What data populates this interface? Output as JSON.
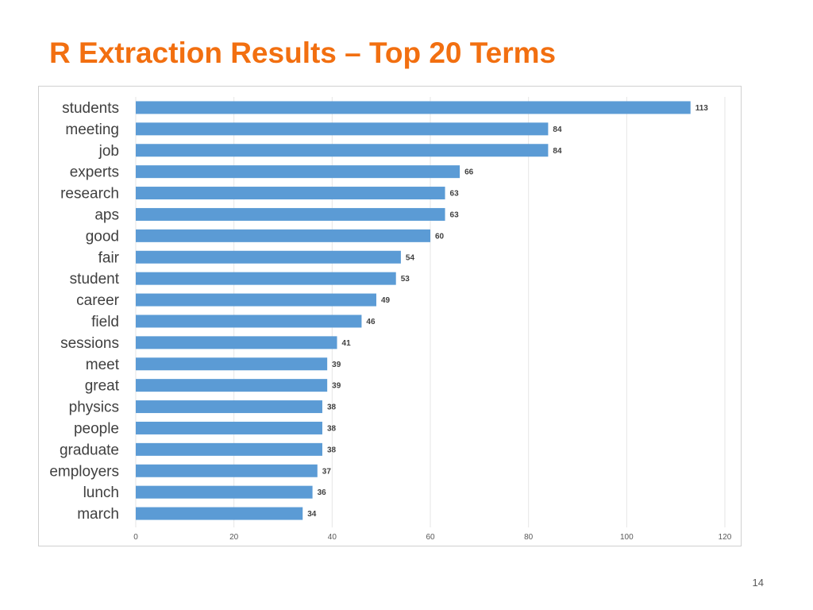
{
  "slide": {
    "title": "R Extraction Results – Top 20 Terms",
    "page_number": "14"
  },
  "colors": {
    "title": "#f26f10",
    "bar": "#5b9bd5",
    "grid": "#e6e6e6"
  },
  "chart_data": {
    "type": "bar",
    "orientation": "horizontal",
    "title": "",
    "xlabel": "",
    "ylabel": "",
    "categories": [
      "students",
      "meeting",
      "job",
      "experts",
      "research",
      "aps",
      "good",
      "fair",
      "student",
      "career",
      "field",
      "sessions",
      "meet",
      "great",
      "physics",
      "people",
      "graduate",
      "employers",
      "lunch",
      "march"
    ],
    "values": [
      113,
      84,
      84,
      66,
      63,
      63,
      60,
      54,
      53,
      49,
      46,
      41,
      39,
      39,
      38,
      38,
      38,
      37,
      36,
      34
    ],
    "value_labels": [
      "113",
      "84",
      "84",
      "66",
      "63",
      "63",
      "60",
      "54",
      "53",
      "49",
      "46",
      "41",
      "39",
      "39",
      "38",
      "38",
      "38",
      "37",
      "36",
      "34"
    ],
    "xlim": [
      0,
      120
    ],
    "xticks": [
      0,
      20,
      40,
      60,
      80,
      100,
      120
    ],
    "xtick_labels": [
      "0",
      "20",
      "40",
      "60",
      "80",
      "100",
      "120"
    ],
    "grid": true,
    "legend": "none"
  }
}
